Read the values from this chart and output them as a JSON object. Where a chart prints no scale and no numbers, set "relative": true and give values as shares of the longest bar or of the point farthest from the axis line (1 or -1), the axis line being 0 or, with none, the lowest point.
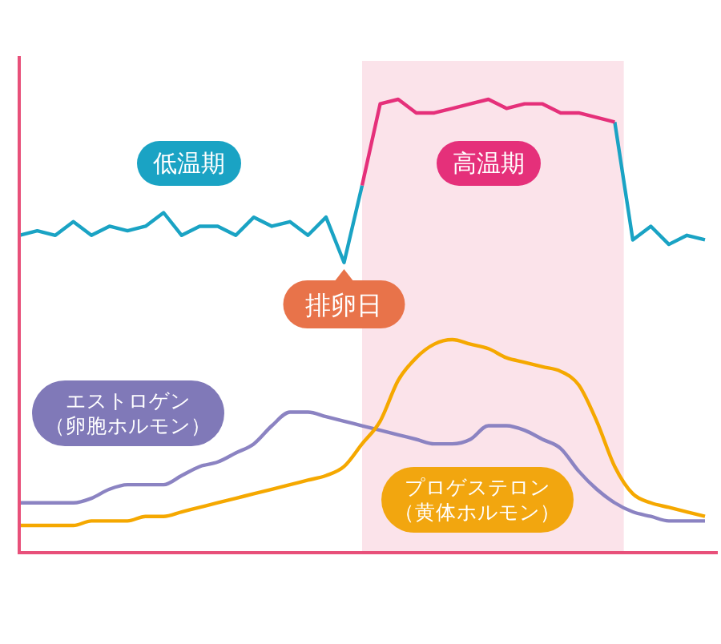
{
  "chart_data": {
    "type": "line",
    "relative": true,
    "marker": "none",
    "line_style": "solid",
    "categories": [
      null,
      null,
      null,
      null,
      null,
      null,
      null,
      null,
      null,
      null,
      null,
      null,
      null,
      null,
      null,
      null,
      null,
      null,
      null,
      null,
      null,
      null,
      null,
      null,
      null,
      null,
      null,
      null,
      null,
      null,
      null,
      null,
      null,
      null,
      null,
      null,
      null,
      null,
      null
    ],
    "series": [
      {
        "name": "低温期",
        "color": "#1aa3c4",
        "values": [
          0.7,
          0.71,
          0.7,
          0.73,
          0.7,
          0.72,
          0.71,
          0.72,
          0.75,
          0.7,
          0.72,
          0.72,
          0.7,
          0.74,
          0.72,
          0.73,
          0.7,
          0.74,
          0.64,
          0.81,
          null,
          null,
          null,
          null,
          null,
          null,
          null,
          null,
          null,
          null,
          null,
          null,
          null,
          0.95,
          0.69,
          0.72,
          0.68,
          0.7,
          0.69
        ]
      },
      {
        "name": "高温期",
        "color": "#e5307a",
        "values": [
          null,
          null,
          null,
          null,
          null,
          null,
          null,
          null,
          null,
          null,
          null,
          null,
          null,
          null,
          null,
          null,
          null,
          null,
          null,
          0.81,
          0.99,
          1.0,
          0.97,
          0.97,
          0.98,
          0.99,
          1.0,
          0.98,
          0.99,
          0.99,
          0.97,
          0.97,
          0.96,
          0.95,
          null,
          null,
          null,
          null,
          null
        ]
      },
      {
        "name": "エストロゲン（卵胞ホルモン）",
        "color": "#8b83c2",
        "values": [
          0.11,
          0.11,
          0.11,
          0.11,
          0.12,
          0.14,
          0.15,
          0.15,
          0.15,
          0.17,
          0.19,
          0.2,
          0.22,
          0.24,
          0.28,
          0.31,
          0.31,
          0.3,
          0.29,
          0.28,
          0.27,
          0.26,
          0.25,
          0.24,
          0.24,
          0.25,
          0.28,
          0.28,
          0.27,
          0.25,
          0.23,
          0.18,
          0.14,
          0.11,
          0.09,
          0.08,
          0.07,
          0.07,
          0.07
        ]
      },
      {
        "name": "プロゲステロン（黄体ホルモン）",
        "color": "#f5a800",
        "values": [
          0.06,
          0.06,
          0.06,
          0.06,
          0.07,
          0.07,
          0.07,
          0.08,
          0.08,
          0.09,
          0.1,
          0.11,
          0.12,
          0.13,
          0.14,
          0.15,
          0.16,
          0.17,
          0.19,
          0.24,
          0.29,
          0.38,
          0.43,
          0.46,
          0.47,
          0.46,
          0.45,
          0.43,
          0.42,
          0.41,
          0.4,
          0.37,
          0.29,
          0.19,
          0.13,
          0.11,
          0.1,
          0.09,
          0.08
        ]
      }
    ],
    "annotations": [
      "排卵日"
    ]
  }
}
